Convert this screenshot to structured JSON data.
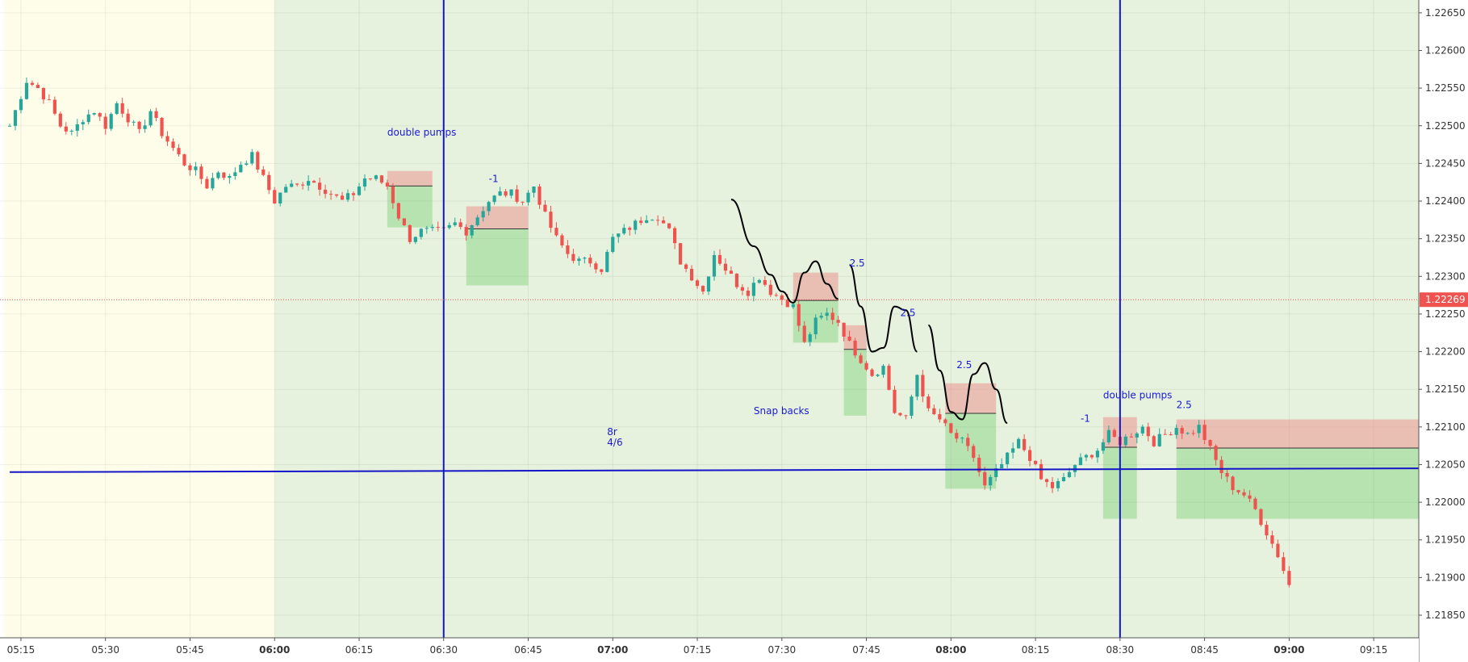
{
  "chart_data": {
    "type": "candlestick",
    "ylim": [
      1.2182,
      1.22667
    ],
    "y_ticks": [
      "1.22650",
      "1.22600",
      "1.22550",
      "1.22500",
      "1.22450",
      "1.22400",
      "1.22350",
      "1.22300",
      "1.22250",
      "1.22200",
      "1.22150",
      "1.22100",
      "1.22050",
      "1.22000",
      "1.21950",
      "1.21900",
      "1.21850"
    ],
    "x_ticks": [
      {
        "label": "05:15",
        "bold": false
      },
      {
        "label": "05:30",
        "bold": false
      },
      {
        "label": "05:45",
        "bold": false
      },
      {
        "label": "06:00",
        "bold": true
      },
      {
        "label": "06:15",
        "bold": false
      },
      {
        "label": "06:30",
        "bold": false
      },
      {
        "label": "06:45",
        "bold": false
      },
      {
        "label": "07:00",
        "bold": true
      },
      {
        "label": "07:15",
        "bold": false
      },
      {
        "label": "07:30",
        "bold": false
      },
      {
        "label": "07:45",
        "bold": false
      },
      {
        "label": "08:00",
        "bold": true
      },
      {
        "label": "08:15",
        "bold": false
      },
      {
        "label": "08:30",
        "bold": false
      },
      {
        "label": "08:45",
        "bold": false
      },
      {
        "label": "09:00",
        "bold": true
      },
      {
        "label": "09:15",
        "bold": false
      }
    ],
    "x_tick_minutes": [
      315,
      330,
      345,
      360,
      375,
      390,
      405,
      420,
      435,
      450,
      465,
      480,
      495,
      510,
      525,
      540,
      555
    ],
    "current_price": {
      "label": "1.22269",
      "value": 1.22269
    },
    "close_path": [
      [
        313,
        1.225
      ],
      [
        315,
        1.2254
      ],
      [
        316,
        1.2256
      ],
      [
        318,
        1.2255
      ],
      [
        320,
        1.2253
      ],
      [
        322,
        1.225
      ],
      [
        324,
        1.2249
      ],
      [
        326,
        1.2251
      ],
      [
        328,
        1.2252
      ],
      [
        330,
        1.225
      ],
      [
        332,
        1.2253
      ],
      [
        334,
        1.2251
      ],
      [
        336,
        1.2249
      ],
      [
        338,
        1.2252
      ],
      [
        340,
        1.2249
      ],
      [
        342,
        1.2247
      ],
      [
        344,
        1.2245
      ],
      [
        346,
        1.2244
      ],
      [
        348,
        1.2242
      ],
      [
        350,
        1.2244
      ],
      [
        352,
        1.2243
      ],
      [
        354,
        1.2245
      ],
      [
        356,
        1.2246
      ],
      [
        358,
        1.2243
      ],
      [
        360,
        1.224
      ],
      [
        362,
        1.2242
      ],
      [
        364,
        1.2242
      ],
      [
        366,
        1.2243
      ],
      [
        368,
        1.2242
      ],
      [
        370,
        1.2241
      ],
      [
        372,
        1.224
      ],
      [
        374,
        1.2241
      ],
      [
        376,
        1.2243
      ],
      [
        378,
        1.2243
      ],
      [
        380,
        1.2242
      ],
      [
        382,
        1.2238
      ],
      [
        384,
        1.2235
      ],
      [
        386,
        1.2236
      ],
      [
        388,
        1.2236
      ],
      [
        390,
        1.2236
      ],
      [
        392,
        1.2237
      ],
      [
        394,
        1.2236
      ],
      [
        396,
        1.2238
      ],
      [
        398,
        1.224
      ],
      [
        400,
        1.2241
      ],
      [
        402,
        1.2241
      ],
      [
        404,
        1.224
      ],
      [
        406,
        1.2242
      ],
      [
        408,
        1.2238
      ],
      [
        410,
        1.2235
      ],
      [
        412,
        1.2233
      ],
      [
        414,
        1.2232
      ],
      [
        416,
        1.2232
      ],
      [
        418,
        1.2231
      ],
      [
        420,
        1.2235
      ],
      [
        422,
        1.2236
      ],
      [
        424,
        1.2237
      ],
      [
        426,
        1.2238
      ],
      [
        428,
        1.2238
      ],
      [
        430,
        1.2236
      ],
      [
        432,
        1.2232
      ],
      [
        434,
        1.223
      ],
      [
        436,
        1.2228
      ],
      [
        438,
        1.2233
      ],
      [
        440,
        1.2231
      ],
      [
        442,
        1.2229
      ],
      [
        444,
        1.2228
      ],
      [
        446,
        1.223
      ],
      [
        448,
        1.2228
      ],
      [
        450,
        1.2227
      ],
      [
        452,
        1.2226
      ],
      [
        454,
        1.2221
      ],
      [
        456,
        1.2224
      ],
      [
        458,
        1.2225
      ],
      [
        460,
        1.2224
      ],
      [
        462,
        1.2221
      ],
      [
        464,
        1.2219
      ],
      [
        466,
        1.2217
      ],
      [
        468,
        1.2218
      ],
      [
        470,
        1.2212
      ],
      [
        472,
        1.2211
      ],
      [
        474,
        1.2217
      ],
      [
        476,
        1.2212
      ],
      [
        478,
        1.2211
      ],
      [
        480,
        1.2209
      ],
      [
        482,
        1.2208
      ],
      [
        484,
        1.2206
      ],
      [
        486,
        1.2202
      ],
      [
        488,
        1.2204
      ],
      [
        490,
        1.2206
      ],
      [
        492,
        1.2208
      ],
      [
        494,
        1.2206
      ],
      [
        496,
        1.2203
      ],
      [
        498,
        1.2202
      ],
      [
        500,
        1.2203
      ],
      [
        502,
        1.2205
      ],
      [
        504,
        1.2206
      ],
      [
        506,
        1.2207
      ],
      [
        508,
        1.2209
      ],
      [
        510,
        1.2208
      ],
      [
        512,
        1.2209
      ],
      [
        514,
        1.221
      ],
      [
        516,
        1.2208
      ],
      [
        518,
        1.2209
      ],
      [
        520,
        1.221
      ],
      [
        522,
        1.2209
      ],
      [
        524,
        1.221
      ],
      [
        526,
        1.2207
      ],
      [
        528,
        1.2204
      ],
      [
        530,
        1.2202
      ],
      [
        532,
        1.2201
      ],
      [
        534,
        1.2199
      ],
      [
        536,
        1.2196
      ],
      [
        538,
        1.2193
      ],
      [
        539,
        1.2191
      ],
      [
        540,
        1.2189
      ],
      [
        541,
        1.2184
      ]
    ],
    "session_shading": [
      {
        "from": 312,
        "to": 360,
        "color": "#fefde9"
      },
      {
        "from": 360,
        "to": 563,
        "color": "#e6f2dd"
      }
    ],
    "vertical_lines": [
      390,
      510
    ],
    "horizontal_line": {
      "x1": 313,
      "y1": 1.2204,
      "x2": 563,
      "y2": 1.22045
    },
    "dotted_level": 1.22269,
    "positions": [
      {
        "x1": 380,
        "x2": 388,
        "entry": 1.2242,
        "stop": 1.2244,
        "target": 1.22365,
        "dir": "short"
      },
      {
        "x1": 394,
        "x2": 405,
        "entry": 1.22363,
        "stop": 1.22393,
        "target": 1.22288,
        "dir": "short"
      },
      {
        "x1": 452,
        "x2": 460,
        "entry": 1.22268,
        "stop": 1.22305,
        "target": 1.22212,
        "dir": "short"
      },
      {
        "x1": 461,
        "x2": 465,
        "entry": 1.22203,
        "stop": 1.22235,
        "target": 1.22115,
        "dir": "short"
      },
      {
        "x1": 479,
        "x2": 488,
        "entry": 1.22118,
        "stop": 1.22158,
        "target": 1.22018,
        "dir": "short"
      },
      {
        "x1": 507,
        "x2": 513,
        "entry": 1.22073,
        "stop": 1.22113,
        "target": 1.21978,
        "dir": "short"
      },
      {
        "x1": 520,
        "x2": 563,
        "entry": 1.22072,
        "stop": 1.2211,
        "target": 1.21978,
        "dir": "short"
      }
    ],
    "wave_paths": [
      [
        [
          441,
          1.22402
        ],
        [
          445,
          1.2234
        ],
        [
          448,
          1.22302
        ],
        [
          450,
          1.2228
        ],
        [
          452,
          1.22265
        ],
        [
          454,
          1.22305
        ],
        [
          456,
          1.2232
        ],
        [
          458,
          1.2229
        ],
        [
          460,
          1.2227
        ]
      ],
      [
        [
          462,
          1.22315
        ],
        [
          464,
          1.2226
        ],
        [
          466,
          1.222
        ],
        [
          468,
          1.22205
        ],
        [
          470,
          1.2226
        ],
        [
          472,
          1.22255
        ],
        [
          474,
          1.222
        ]
      ],
      [
        [
          476,
          1.22235
        ],
        [
          478,
          1.22175
        ],
        [
          480,
          1.2212
        ],
        [
          482,
          1.2211
        ],
        [
          484,
          1.2217
        ],
        [
          486,
          1.22185
        ],
        [
          488,
          1.2215
        ],
        [
          490,
          1.22105
        ]
      ]
    ],
    "annotations": [
      {
        "text": "double pumps",
        "x": 380,
        "y": 1.22487
      },
      {
        "text": "-1",
        "x": 398,
        "y": 1.22425
      },
      {
        "text": "8r",
        "x": 419,
        "y": 1.22089
      },
      {
        "text": "4/6",
        "x": 419,
        "y": 1.22075
      },
      {
        "text": "Snap backs",
        "x": 445,
        "y": 1.22117
      },
      {
        "text": "2.5",
        "x": 462,
        "y": 1.22313
      },
      {
        "text": "2.5",
        "x": 471,
        "y": 1.22247
      },
      {
        "text": "2.5",
        "x": 481,
        "y": 1.22178
      },
      {
        "text": "double pumps",
        "x": 507,
        "y": 1.22138
      },
      {
        "text": "-1",
        "x": 503,
        "y": 1.22107
      },
      {
        "text": "2.5",
        "x": 520,
        "y": 1.22125
      }
    ]
  }
}
